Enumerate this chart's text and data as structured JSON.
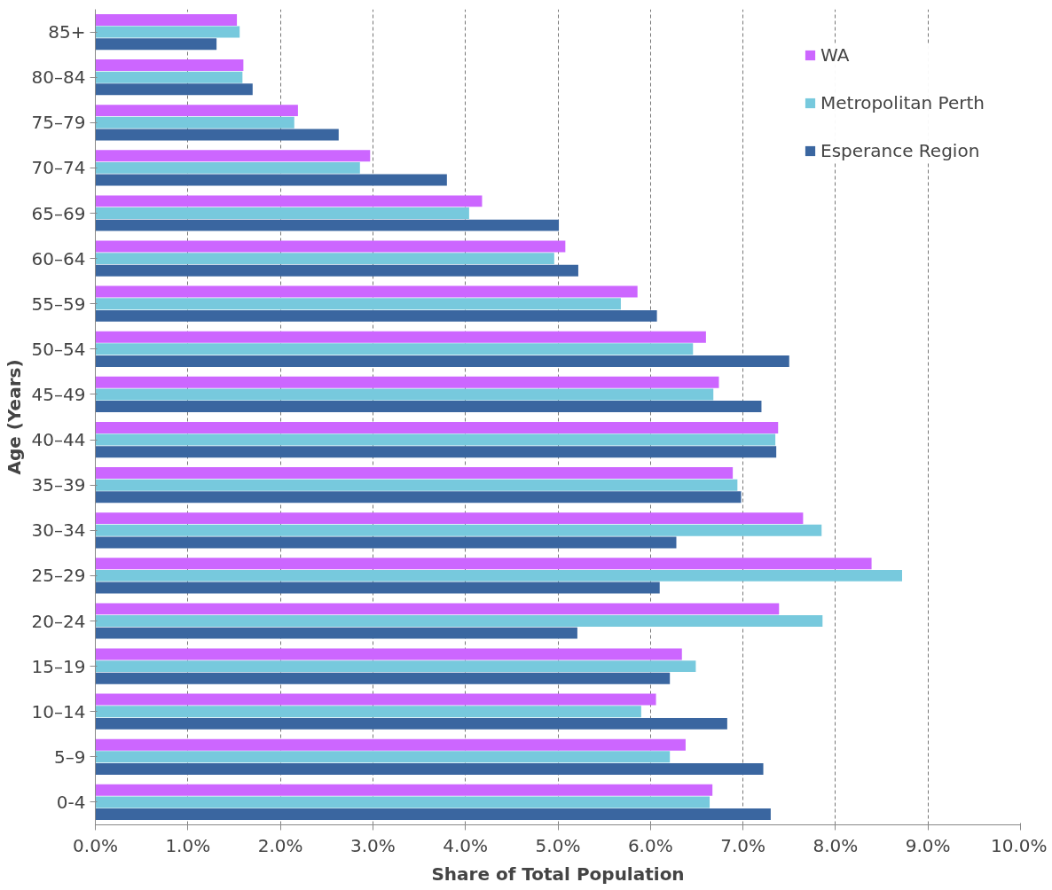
{
  "chart_data": {
    "type": "bar",
    "orientation": "horizontal",
    "xlabel": "Share of Total Population",
    "ylabel": "Age (Years)",
    "categories": [
      "85+",
      "80–84",
      "75–79",
      "70–74",
      "65–69",
      "60–64",
      "55–59",
      "50–54",
      "45–49",
      "40–44",
      "35–39",
      "30–34",
      "25–29",
      "20–24",
      "15–19",
      "10–14",
      "5–9",
      "0-4"
    ],
    "series": [
      {
        "name": "WA",
        "color": "#cc66ff",
        "values": [
          1.53,
          1.6,
          2.19,
          2.97,
          4.18,
          5.08,
          5.86,
          6.6,
          6.74,
          7.38,
          6.89,
          7.65,
          8.39,
          7.39,
          6.34,
          6.06,
          6.38,
          6.67
        ]
      },
      {
        "name": "Metropolitan Perth",
        "color": "#77c9dd",
        "values": [
          1.56,
          1.59,
          2.15,
          2.86,
          4.04,
          4.96,
          5.68,
          6.46,
          6.68,
          7.35,
          6.94,
          7.85,
          8.72,
          7.86,
          6.49,
          5.9,
          6.21,
          6.64
        ]
      },
      {
        "name": "Esperance Region",
        "color": "#3a66a0",
        "values": [
          1.31,
          1.7,
          2.63,
          3.8,
          5.01,
          5.22,
          6.07,
          7.5,
          7.2,
          7.36,
          6.98,
          6.28,
          6.1,
          5.21,
          6.21,
          6.83,
          7.22,
          7.3
        ]
      }
    ],
    "xlim": [
      0,
      10
    ],
    "xticks": [
      {
        "value": 0,
        "label": "0.0%"
      },
      {
        "value": 1,
        "label": "1.0%"
      },
      {
        "value": 2,
        "label": "2.0%"
      },
      {
        "value": 3,
        "label": "3.0%"
      },
      {
        "value": 4,
        "label": "4.0%"
      },
      {
        "value": 5,
        "label": "5.0%"
      },
      {
        "value": 6,
        "label": "6.0%"
      },
      {
        "value": 7,
        "label": "7.0%"
      },
      {
        "value": 8,
        "label": "8.0%"
      },
      {
        "value": 9,
        "label": "9.0%"
      },
      {
        "value": 10,
        "label": "10.0%"
      }
    ],
    "grid": "x",
    "legend": "top right"
  }
}
